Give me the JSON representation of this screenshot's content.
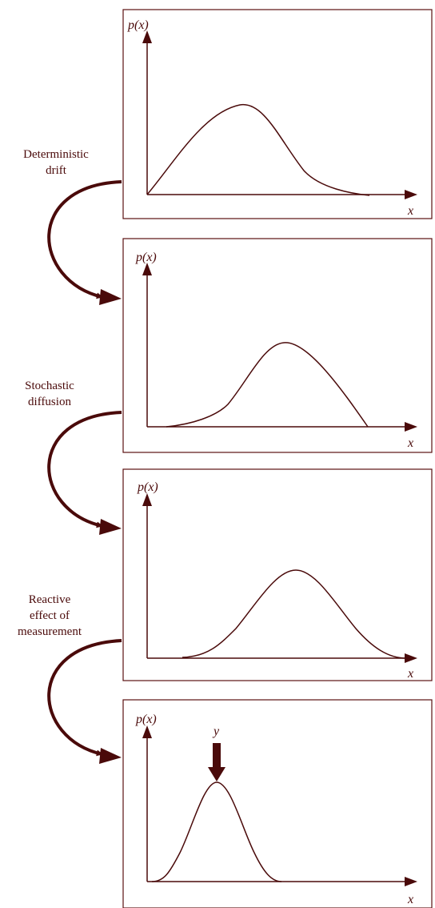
{
  "colors": {
    "line": "#4a0a0a",
    "panel_border": "#5a1010",
    "background": "#ffffff"
  },
  "panels": [
    {
      "y_axis_label": "p(x)",
      "x_axis_label": "x"
    },
    {
      "y_axis_label": "p(x)",
      "x_axis_label": "x"
    },
    {
      "y_axis_label": "p(x)",
      "x_axis_label": "x"
    },
    {
      "y_axis_label": "p(x)",
      "x_axis_label": "x",
      "marker_label": "y"
    }
  ],
  "transitions": [
    {
      "lines": [
        "Deterministic",
        "drift"
      ]
    },
    {
      "lines": [
        "Stochastic",
        "diffusion"
      ]
    },
    {
      "lines": [
        "Reactive",
        "effect of",
        "measurement"
      ]
    }
  ]
}
